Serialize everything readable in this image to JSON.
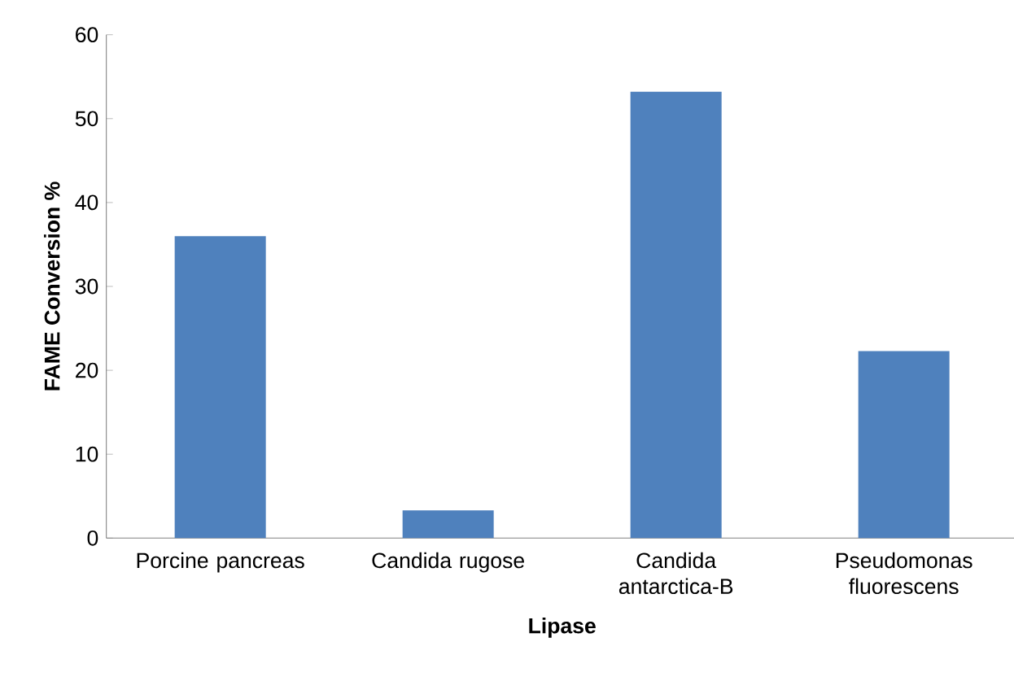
{
  "chart_data": {
    "type": "bar",
    "xlabel": "Lipase",
    "ylabel": "FAME Conversion %",
    "categories": [
      "Porcine pancreas",
      "Candida rugose",
      "Candida antarctica-B",
      "Pseudomonas fluorescens"
    ],
    "values": [
      36,
      3.3,
      53.2,
      22.3
    ],
    "color": "#4f81bd",
    "ylim": [
      0,
      60
    ],
    "yticks": [
      0,
      10,
      20,
      30,
      40,
      50,
      60
    ],
    "grid": false
  }
}
